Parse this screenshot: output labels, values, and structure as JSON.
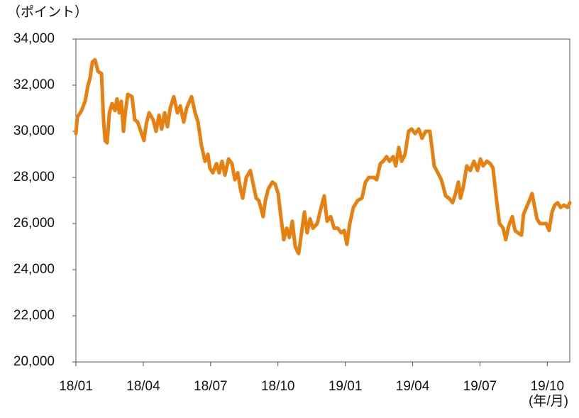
{
  "chart_data": {
    "type": "line",
    "y_label": "（ポイント）",
    "x_label": "(年/月)",
    "xlim": [
      0,
      22
    ],
    "xticks": [
      {
        "value": 0,
        "label": "18/01"
      },
      {
        "value": 3,
        "label": "18/04"
      },
      {
        "value": 6,
        "label": "18/07"
      },
      {
        "value": 9,
        "label": "18/10"
      },
      {
        "value": 12,
        "label": "19/01"
      },
      {
        "value": 15,
        "label": "19/04"
      },
      {
        "value": 18,
        "label": "19/07"
      },
      {
        "value": 21,
        "label": "19/10"
      }
    ],
    "ylim": [
      20000,
      34000
    ],
    "yticks": [
      {
        "value": 20000,
        "label": "20,000"
      },
      {
        "value": 22000,
        "label": "22,000"
      },
      {
        "value": 24000,
        "label": "24,000"
      },
      {
        "value": 26000,
        "label": "26,000"
      },
      {
        "value": 28000,
        "label": "28,000"
      },
      {
        "value": 30000,
        "label": "30,000"
      },
      {
        "value": 32000,
        "label": "32,000"
      },
      {
        "value": 34000,
        "label": "34,000"
      }
    ],
    "grid": false,
    "color": "#e8800f",
    "x": [
      0,
      0.06,
      0.25,
      0.41,
      0.54,
      0.63,
      0.73,
      0.85,
      0.98,
      1.14,
      1.23,
      1.3,
      1.39,
      1.49,
      1.61,
      1.74,
      1.83,
      1.93,
      2.02,
      2.12,
      2.21,
      2.31,
      2.5,
      2.62,
      2.75,
      3.03,
      3.13,
      3.26,
      3.44,
      3.57,
      3.7,
      3.82,
      3.95,
      4.08,
      4.2,
      4.36,
      4.52,
      4.65,
      4.8,
      4.93,
      5.15,
      5.31,
      5.44,
      5.59,
      5.75,
      5.88,
      5.97,
      6.1,
      6.26,
      6.38,
      6.51,
      6.64,
      6.8,
      6.95,
      7.08,
      7.21,
      7.33,
      7.43,
      7.59,
      7.77,
      7.9,
      8.03,
      8.15,
      8.34,
      8.44,
      8.57,
      8.75,
      8.88,
      9.01,
      9.13,
      9.26,
      9.39,
      9.51,
      9.64,
      9.77,
      9.92,
      10.05,
      10.18,
      10.3,
      10.43,
      10.56,
      10.75,
      10.87,
      11.06,
      11.19,
      11.35,
      11.5,
      11.66,
      11.82,
      11.95,
      12.07,
      12.2,
      12.36,
      12.55,
      12.74,
      12.9,
      13.05,
      13.27,
      13.4,
      13.56,
      13.69,
      13.84,
      13.97,
      14.13,
      14.25,
      14.38,
      14.51,
      14.66,
      14.82,
      14.95,
      15.11,
      15.27,
      15.42,
      15.58,
      15.77,
      15.96,
      16.12,
      16.28,
      16.47,
      16.62,
      16.78,
      16.91,
      17.04,
      17.13,
      17.26,
      17.41,
      17.57,
      17.73,
      17.89,
      18.02,
      18.14,
      18.3,
      18.46,
      18.58,
      18.74,
      18.87,
      19.03,
      19.15,
      19.28,
      19.44,
      19.56,
      19.69,
      19.85,
      19.94,
      20.07,
      20.2,
      20.32,
      20.42,
      20.54,
      20.67,
      20.83,
      20.95,
      21.08,
      21.21,
      21.33,
      21.46,
      21.59,
      21.74,
      21.9,
      22.0
    ],
    "values": [
      29900,
      30600,
      30900,
      31300,
      32000,
      32300,
      33000,
      33100,
      32600,
      32500,
      30500,
      29600,
      29500,
      30800,
      31200,
      30900,
      31400,
      30800,
      31300,
      30000,
      30900,
      31600,
      31500,
      30500,
      30400,
      29600,
      30300,
      30800,
      30500,
      30000,
      30700,
      30100,
      30800,
      30200,
      31000,
      31500,
      30800,
      31100,
      30400,
      31000,
      31500,
      30800,
      30400,
      29400,
      28700,
      29000,
      28400,
      28200,
      28600,
      28200,
      28700,
      28100,
      28800,
      28600,
      27900,
      28200,
      27500,
      27100,
      28000,
      28300,
      27700,
      27100,
      27000,
      26300,
      27000,
      27500,
      27800,
      27700,
      27300,
      26300,
      25300,
      25800,
      25400,
      26100,
      25000,
      24700,
      25600,
      26500,
      25600,
      26200,
      25800,
      26000,
      26500,
      27200,
      26100,
      26300,
      25800,
      25800,
      25600,
      25700,
      25100,
      26000,
      26700,
      27000,
      27100,
      27800,
      28000,
      28000,
      27900,
      28600,
      28700,
      28900,
      28700,
      28900,
      28500,
      29300,
      28700,
      29000,
      30000,
      30100,
      29900,
      30100,
      29700,
      30000,
      30000,
      28500,
      28200,
      27900,
      27200,
      27100,
      26900,
      27300,
      27800,
      27100,
      27600,
      28500,
      28300,
      28700,
      28300,
      28800,
      28500,
      28700,
      28600,
      28400,
      27000,
      26000,
      25800,
      25300,
      25900,
      26300,
      25700,
      25600,
      25500,
      26400,
      26700,
      27000,
      27300,
      26800,
      26200,
      26000,
      26000,
      26000,
      25700,
      26500,
      26800,
      26900,
      26700,
      26800,
      26700,
      26900
    ]
  }
}
